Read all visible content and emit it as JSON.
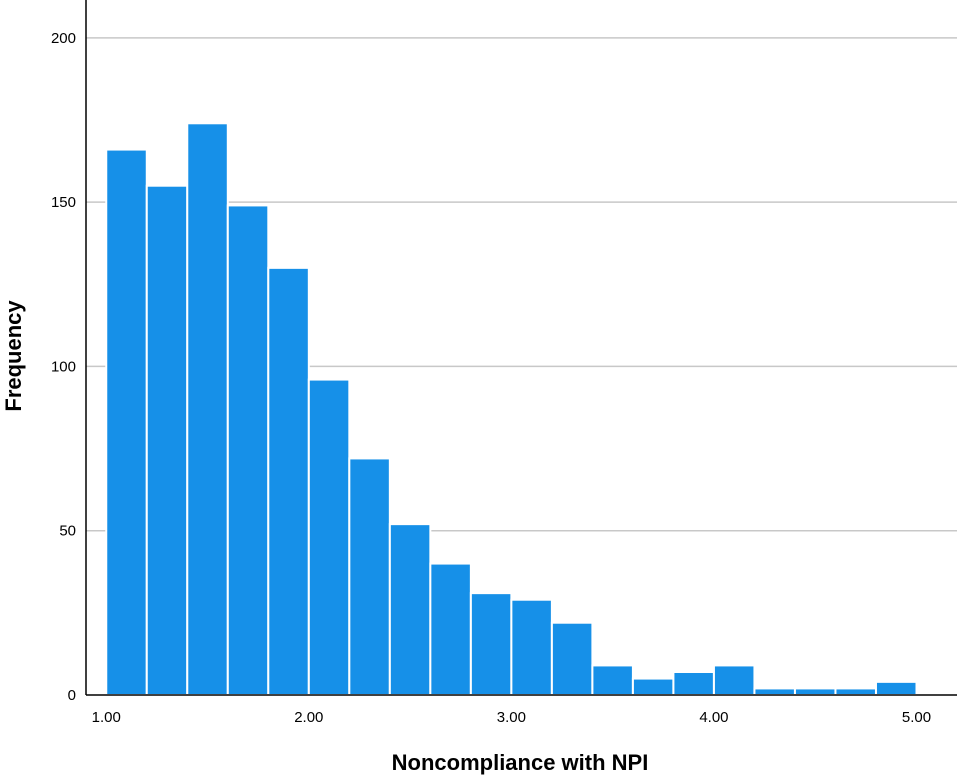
{
  "chart_data": {
    "type": "bar",
    "xlabel": "Noncompliance with NPI",
    "ylabel": "Frequency",
    "bin_edges": [
      1.0,
      1.2,
      1.4,
      1.6,
      1.8,
      2.0,
      2.2,
      2.4,
      2.6,
      2.8,
      3.0,
      3.2,
      3.4,
      3.6,
      3.8,
      4.0,
      4.2,
      4.4,
      4.6,
      4.8,
      5.0
    ],
    "values": [
      166,
      155,
      174,
      149,
      130,
      96,
      72,
      52,
      40,
      31,
      29,
      22,
      9,
      5,
      7,
      9,
      2,
      2,
      2,
      4
    ],
    "xlim": [
      0.9,
      5.2
    ],
    "ylim": [
      0,
      210
    ],
    "x_ticks": [
      "1.00",
      "2.00",
      "3.00",
      "4.00",
      "5.00"
    ],
    "y_ticks": [
      "0",
      "50",
      "100",
      "150",
      "200"
    ],
    "grid": "horizontal",
    "colors": {
      "bar_fill": "#1690e8",
      "bar_edge": "#ffffff",
      "grid": "#c8c8c8",
      "axis": "#000000"
    }
  }
}
